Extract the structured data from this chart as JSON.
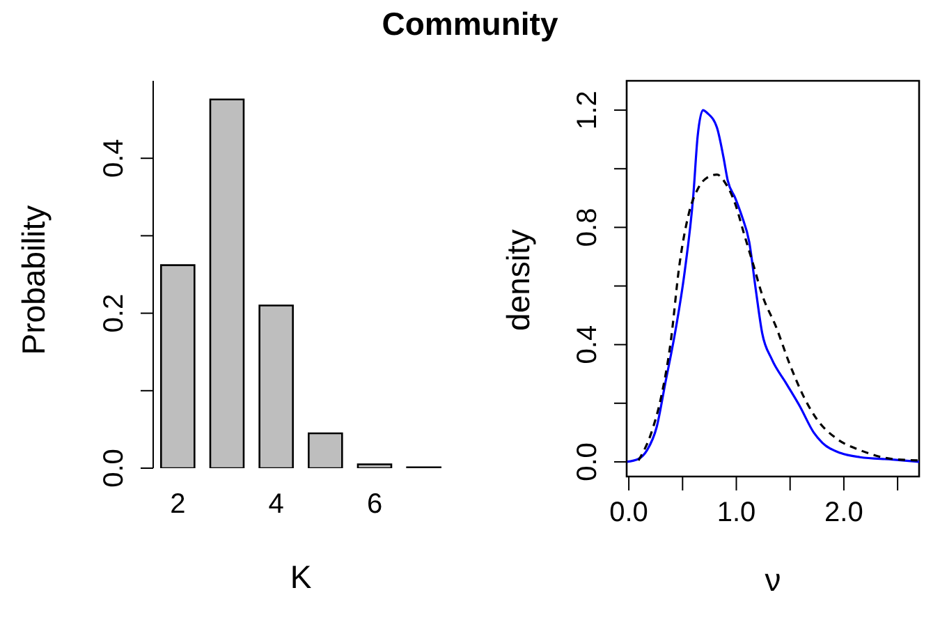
{
  "chart_data": [
    {
      "type": "bar",
      "title": "Community",
      "xlabel": "K",
      "ylabel": "Probability",
      "categories": [
        "2",
        null,
        "4",
        null,
        "6",
        null
      ],
      "values": [
        0.262,
        0.476,
        0.21,
        0.045,
        0.005,
        0.001
      ],
      "color": "#bebebe",
      "ylim": [
        0,
        0.5
      ],
      "yticks": [
        {
          "value": 0,
          "label": "0.0"
        },
        {
          "value": 0.1,
          "label": null
        },
        {
          "value": 0.2,
          "label": "0.2"
        },
        {
          "value": 0.3,
          "label": null
        },
        {
          "value": 0.4,
          "label": "0.4"
        }
      ],
      "grid": false,
      "legend": false
    },
    {
      "type": "line",
      "xlabel": "ν",
      "ylabel": "density",
      "xlim": [
        -0.02,
        2.7
      ],
      "ylim": [
        -0.05,
        1.3
      ],
      "xticks": [
        {
          "value": 0,
          "label": "0.0"
        },
        {
          "value": 0.5,
          "label": null
        },
        {
          "value": 1,
          "label": "1.0"
        },
        {
          "value": 1.5,
          "label": null
        },
        {
          "value": 2,
          "label": "2.0"
        },
        {
          "value": 2.5,
          "label": null
        }
      ],
      "yticks": [
        {
          "value": 0,
          "label": "0.0"
        },
        {
          "value": 0.2,
          "label": null
        },
        {
          "value": 0.4,
          "label": "0.4"
        },
        {
          "value": 0.6,
          "label": null
        },
        {
          "value": 0.8,
          "label": "0.8"
        },
        {
          "value": 1,
          "label": null
        },
        {
          "value": 1.2,
          "label": "1.2"
        }
      ],
      "grid": false,
      "legend": false,
      "marker": "none",
      "series": [
        {
          "color": "#0000ff",
          "line_style": "solid",
          "x": [
            -0.02,
            0.09,
            0.17,
            0.26,
            0.34,
            0.43,
            0.52,
            0.6,
            0.64,
            0.69,
            0.73,
            0.82,
            0.88,
            0.92,
            0.99,
            1.05,
            1.12,
            1.18,
            1.24,
            1.33,
            1.46,
            1.59,
            1.72,
            1.8,
            1.97,
            2.15,
            2.45,
            2.7
          ],
          "values": [
            0,
            0.01,
            0.04,
            0.12,
            0.27,
            0.44,
            0.65,
            0.91,
            1.11,
            1.2,
            1.19,
            1.14,
            1.04,
            0.96,
            0.9,
            0.84,
            0.75,
            0.59,
            0.44,
            0.35,
            0.27,
            0.19,
            0.1,
            0.065,
            0.03,
            0.016,
            0.008,
            0
          ]
        },
        {
          "color": "#000000",
          "line_style": "dashed",
          "x": [
            0.09,
            0.21,
            0.3,
            0.39,
            0.47,
            0.56,
            0.64,
            0.73,
            0.82,
            0.9,
            0.99,
            1.07,
            1.16,
            1.24,
            1.37,
            1.5,
            1.63,
            1.76,
            1.93,
            2.15,
            2.45,
            2.7
          ],
          "values": [
            0.005,
            0.1,
            0.22,
            0.41,
            0.67,
            0.85,
            0.93,
            0.97,
            0.98,
            0.95,
            0.88,
            0.78,
            0.67,
            0.57,
            0.46,
            0.33,
            0.22,
            0.14,
            0.08,
            0.04,
            0.01,
            0.005
          ]
        }
      ]
    }
  ]
}
